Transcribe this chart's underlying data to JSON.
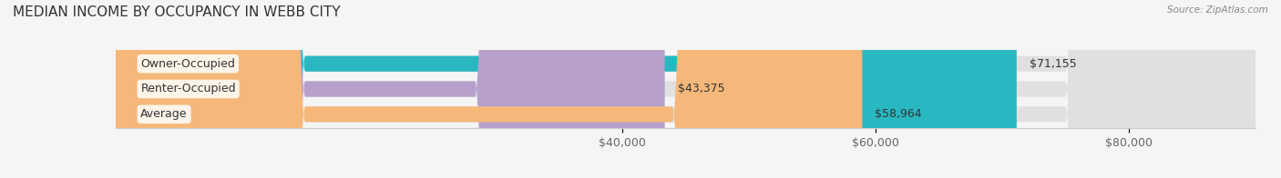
{
  "title": "MEDIAN INCOME BY OCCUPANCY IN WEBB CITY",
  "source": "Source: ZipAtlas.com",
  "categories": [
    "Owner-Occupied",
    "Renter-Occupied",
    "Average"
  ],
  "values": [
    71155,
    43375,
    58964
  ],
  "labels": [
    "$71,155",
    "$43,375",
    "$58,964"
  ],
  "bar_colors": [
    "#29b8c2",
    "#b8a0cc",
    "#f5b87a"
  ],
  "bar_edge_colors": [
    "#29b8c2",
    "#b8a0cc",
    "#f5b87a"
  ],
  "background_color": "#f5f5f5",
  "bar_bg_color": "#e8e8e8",
  "xlim": [
    0,
    90000
  ],
  "xticks": [
    40000,
    60000,
    80000
  ],
  "xticklabels": [
    "$40,000",
    "$60,000",
    "$80,000"
  ],
  "title_fontsize": 11,
  "label_fontsize": 9,
  "tick_fontsize": 9,
  "bar_height": 0.62
}
